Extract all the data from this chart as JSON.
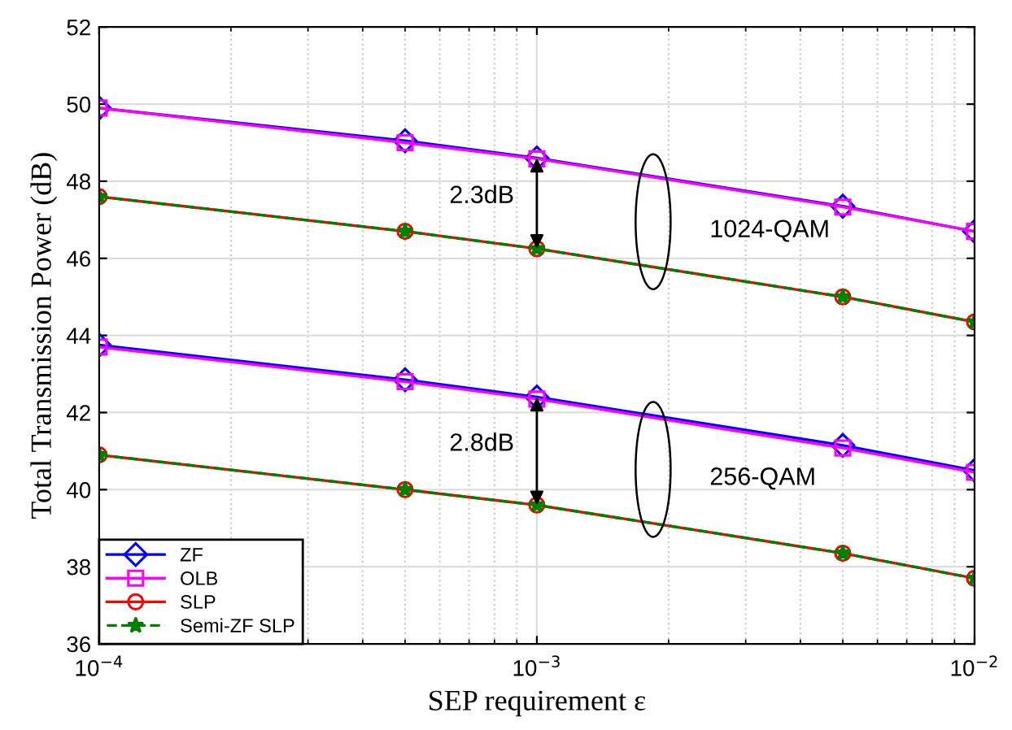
{
  "chart_data": {
    "type": "line",
    "xlabel": "SEP requirement ε",
    "ylabel": "Total Transmission Power (dB)",
    "x": [
      0.0001,
      0.0005,
      0.001,
      0.005,
      0.01
    ],
    "log": "x",
    "xlim": [
      0.0001,
      0.01
    ],
    "xticks": [
      {
        "value": 0.0001,
        "label": "10$^{−4}$"
      },
      {
        "value": 0.001,
        "label": "10$^{−3}$"
      },
      {
        "value": 0.01,
        "label": "10$^{−2}$"
      }
    ],
    "ylim": [
      36,
      52
    ],
    "yticks": [
      36,
      38,
      40,
      42,
      44,
      46,
      48,
      50,
      52
    ],
    "grid": true,
    "legend": "bottom left",
    "series": [
      {
        "name": "ZF",
        "color": "#0000ff",
        "marker": "diamond",
        "line_style": "solid",
        "values": [
          49.9,
          49.05,
          48.6,
          47.35,
          46.7
        ]
      },
      {
        "name": "OLB",
        "color": "#ff00ff",
        "marker": "square",
        "line_style": "solid",
        "values": [
          49.9,
          49.0,
          48.58,
          47.33,
          46.7
        ]
      },
      {
        "name": "SLP",
        "color": "#ff0000",
        "marker": "circle",
        "line_style": "solid",
        "values": [
          47.6,
          46.7,
          46.25,
          45.0,
          44.35
        ]
      },
      {
        "name": "Semi-ZF SLP",
        "color": "#008000",
        "marker": "star",
        "line_style": "dashed",
        "values": [
          47.6,
          46.7,
          46.25,
          45.0,
          44.35
        ]
      },
      {
        "color": "#0000ff",
        "marker": "diamond",
        "line_style": "solid",
        "values": [
          43.75,
          42.85,
          42.4,
          41.15,
          40.5
        ]
      },
      {
        "color": "#ff00ff",
        "marker": "square",
        "line_style": "solid",
        "values": [
          43.7,
          42.8,
          42.35,
          41.08,
          40.45
        ]
      },
      {
        "color": "#ff0000",
        "marker": "circle",
        "line_style": "solid",
        "values": [
          40.9,
          40.0,
          39.6,
          38.35,
          37.7
        ]
      },
      {
        "color": "#008000",
        "marker": "star",
        "line_style": "dashed",
        "values": [
          40.9,
          40.0,
          39.6,
          38.35,
          37.7
        ]
      }
    ],
    "annotations": [
      "2.3dB",
      "2.8dB",
      "1024-QAM",
      "256-QAM"
    ]
  }
}
